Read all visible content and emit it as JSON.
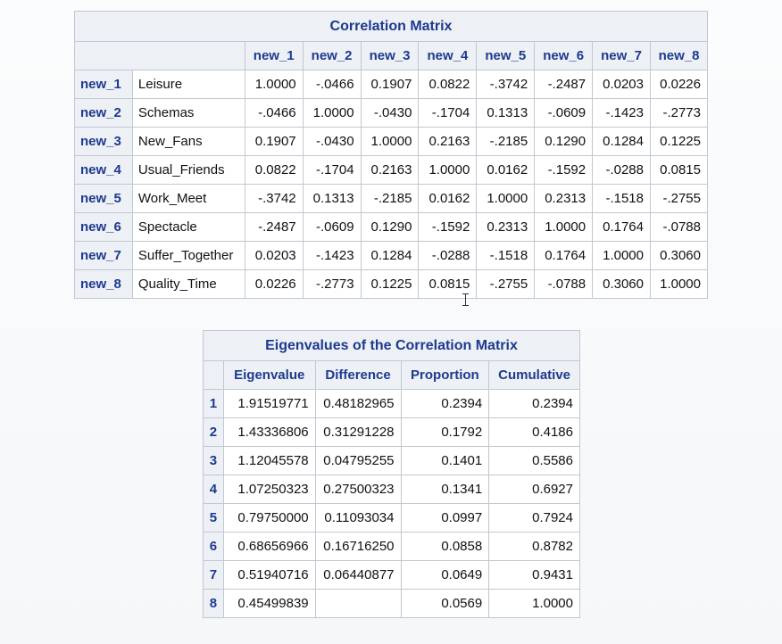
{
  "correlation": {
    "title": "Correlation Matrix",
    "columns": [
      "new_1",
      "new_2",
      "new_3",
      "new_4",
      "new_5",
      "new_6",
      "new_7",
      "new_8"
    ],
    "rows": [
      {
        "id": "new_1",
        "label": "Leisure",
        "values": [
          "1.0000",
          "-.0466",
          "0.1907",
          "0.0822",
          "-.3742",
          "-.2487",
          "0.0203",
          "0.0226"
        ]
      },
      {
        "id": "new_2",
        "label": "Schemas",
        "values": [
          "-.0466",
          "1.0000",
          "-.0430",
          "-.1704",
          "0.1313",
          "-.0609",
          "-.1423",
          "-.2773"
        ]
      },
      {
        "id": "new_3",
        "label": "New_Fans",
        "values": [
          "0.1907",
          "-.0430",
          "1.0000",
          "0.2163",
          "-.2185",
          "0.1290",
          "0.1284",
          "0.1225"
        ]
      },
      {
        "id": "new_4",
        "label": "Usual_Friends",
        "values": [
          "0.0822",
          "-.1704",
          "0.2163",
          "1.0000",
          "0.0162",
          "-.1592",
          "-.0288",
          "0.0815"
        ]
      },
      {
        "id": "new_5",
        "label": "Work_Meet",
        "values": [
          "-.3742",
          "0.1313",
          "-.2185",
          "0.0162",
          "1.0000",
          "0.2313",
          "-.1518",
          "-.2755"
        ]
      },
      {
        "id": "new_6",
        "label": "Spectacle",
        "values": [
          "-.2487",
          "-.0609",
          "0.1290",
          "-.1592",
          "0.2313",
          "1.0000",
          "0.1764",
          "-.0788"
        ]
      },
      {
        "id": "new_7",
        "label": "Suffer_Together",
        "values": [
          "0.0203",
          "-.1423",
          "0.1284",
          "-.0288",
          "-.1518",
          "0.1764",
          "1.0000",
          "0.3060"
        ]
      },
      {
        "id": "new_8",
        "label": "Quality_Time",
        "values": [
          "0.0226",
          "-.2773",
          "0.1225",
          "0.0815",
          "-.2755",
          "-.0788",
          "0.3060",
          "1.0000"
        ]
      }
    ]
  },
  "eigen": {
    "title": "Eigenvalues of the Correlation Matrix",
    "columns": [
      "Eigenvalue",
      "Difference",
      "Proportion",
      "Cumulative"
    ],
    "rows": [
      {
        "id": "1",
        "values": [
          "1.91519771",
          "0.48182965",
          "0.2394",
          "0.2394"
        ]
      },
      {
        "id": "2",
        "values": [
          "1.43336806",
          "0.31291228",
          "0.1792",
          "0.4186"
        ]
      },
      {
        "id": "3",
        "values": [
          "1.12045578",
          "0.04795255",
          "0.1401",
          "0.5586"
        ]
      },
      {
        "id": "4",
        "values": [
          "1.07250323",
          "0.27500323",
          "0.1341",
          "0.6927"
        ]
      },
      {
        "id": "5",
        "values": [
          "0.79750000",
          "0.11093034",
          "0.0997",
          "0.7924"
        ]
      },
      {
        "id": "6",
        "values": [
          "0.68656966",
          "0.16716250",
          "0.0858",
          "0.8782"
        ]
      },
      {
        "id": "7",
        "values": [
          "0.51940716",
          "0.06440877",
          "0.0649",
          "0.9431"
        ]
      },
      {
        "id": "8",
        "values": [
          "0.45499839",
          "",
          "0.0569",
          "1.0000"
        ]
      }
    ]
  },
  "cursor_icon": "text-cursor-icon"
}
